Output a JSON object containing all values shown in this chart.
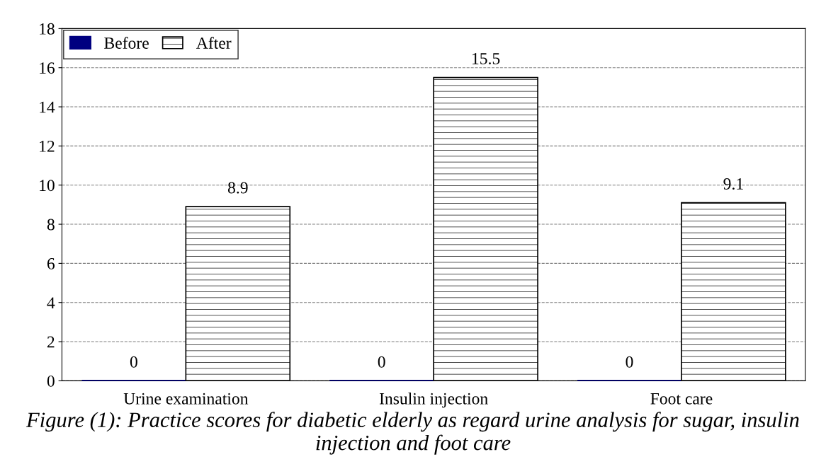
{
  "chart_data": {
    "type": "bar",
    "categories": [
      "Urine examination",
      "Insulin injection",
      "Foot care"
    ],
    "series": [
      {
        "name": "Before",
        "color": "#000080",
        "values": [
          0,
          0,
          0
        ]
      },
      {
        "name": "After",
        "color": "#000000",
        "values": [
          8.9,
          15.5,
          9.1
        ]
      }
    ],
    "ylim": [
      0,
      18
    ],
    "yticks": [
      0,
      2,
      4,
      6,
      8,
      10,
      12,
      14,
      16,
      18
    ],
    "grid": "y",
    "legend": "top left",
    "data_labels": true,
    "annotations": [
      "Figure (1): Practice scores for diabetic elderly as regard urine analysis for sugar, insulin injection and foot care"
    ]
  }
}
